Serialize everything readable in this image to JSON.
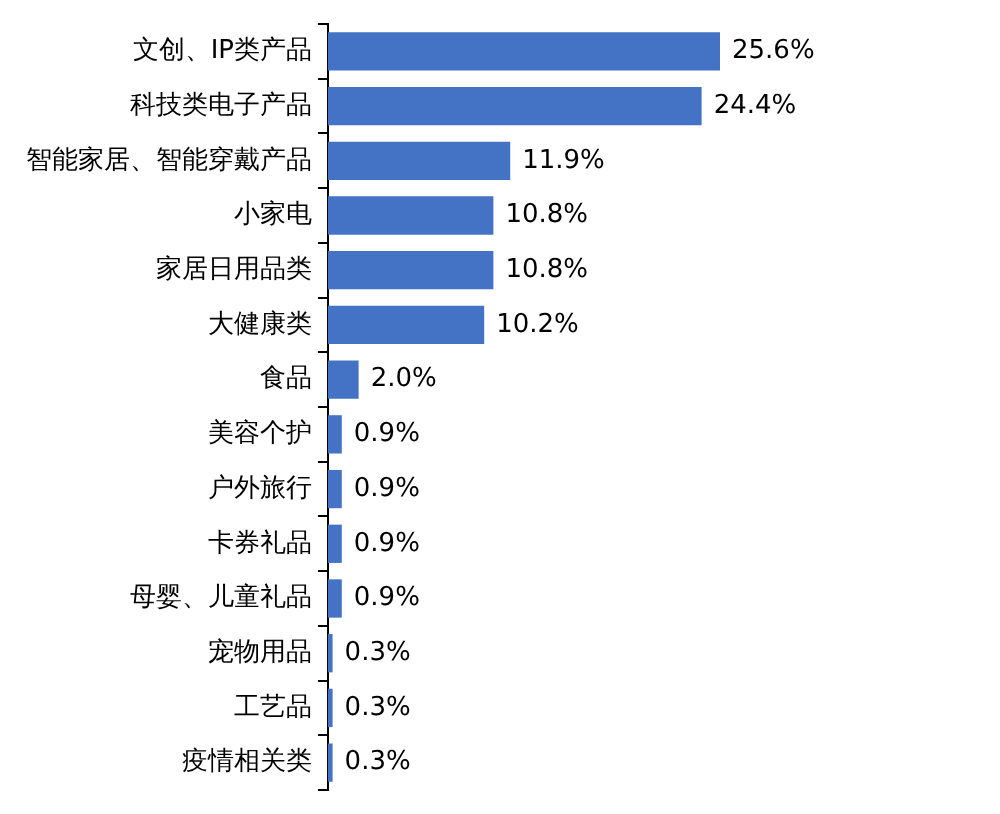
{
  "chart_data": {
    "type": "bar",
    "orientation": "horizontal",
    "categories": [
      "文创、IP类产品",
      "科技类电子产品",
      "智能家居、智能穿戴产品",
      "小家电",
      "家居日用品类",
      "大健康类",
      "食品",
      "美容个护",
      "户外旅行",
      "卡券礼品",
      "母婴、儿童礼品",
      "宠物用品",
      "工艺品",
      "疫情相关类"
    ],
    "values": [
      25.6,
      24.4,
      11.9,
      10.8,
      10.8,
      10.2,
      2.0,
      0.9,
      0.9,
      0.9,
      0.9,
      0.3,
      0.3,
      0.3
    ],
    "value_labels": [
      "25.6%",
      "24.4%",
      "11.9%",
      "10.8%",
      "10.8%",
      "10.2%",
      "2.0%",
      "0.9%",
      "0.9%",
      "0.9%",
      "0.9%",
      "0.3%",
      "0.3%",
      "0.3%"
    ],
    "color": "#4472c4",
    "tick_labels": "y",
    "grid": false,
    "legend": false
  }
}
